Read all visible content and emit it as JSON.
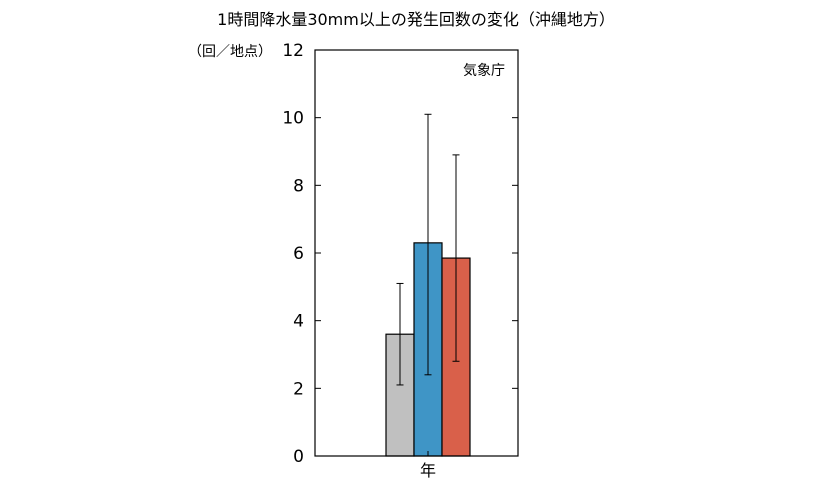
{
  "chart_data": {
    "type": "bar",
    "title": "1時間降水量30mm以上の発生回数の変化（沖縄地方）",
    "ylabel": "（回／地点）",
    "source": "気象庁",
    "categories": [
      "年"
    ],
    "ylim": [
      0,
      12
    ],
    "yticks": [
      0,
      2,
      4,
      6,
      8,
      10,
      12
    ],
    "grid": false,
    "series": [
      {
        "color": "#c0c0c0",
        "values": [
          3.6
        ],
        "error_low": [
          2.1
        ],
        "error_high": [
          5.1
        ]
      },
      {
        "color": "#3f95c6",
        "values": [
          6.3
        ],
        "error_low": [
          2.4
        ],
        "error_high": [
          10.1
        ]
      },
      {
        "color": "#d9604a",
        "values": [
          5.85
        ],
        "error_low": [
          2.8
        ],
        "error_high": [
          8.9
        ]
      }
    ]
  }
}
